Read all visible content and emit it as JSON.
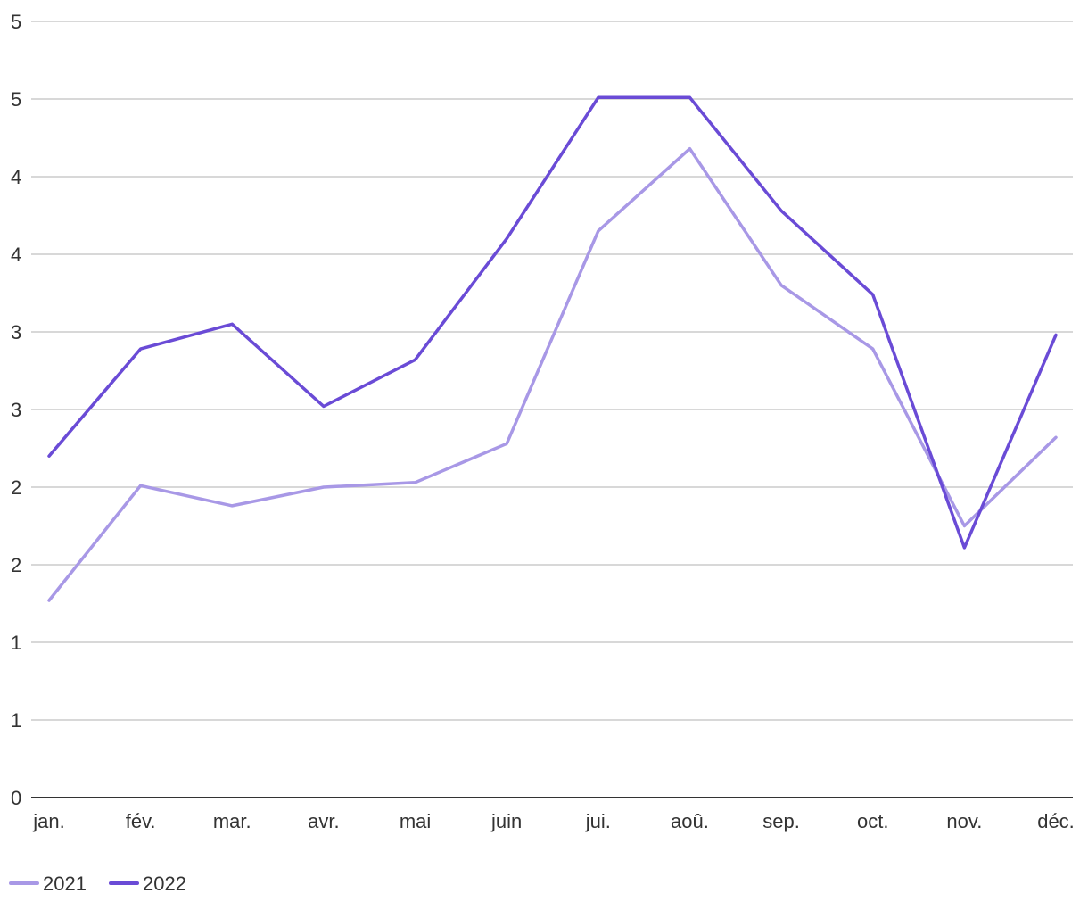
{
  "chart_data": {
    "type": "line",
    "categories": [
      "jan.",
      "fév.",
      "mar.",
      "avr.",
      "mai",
      "juin",
      "jui.",
      "aoû.",
      "sep.",
      "oct.",
      "nov.",
      "déc."
    ],
    "series": [
      {
        "name": "2021",
        "color": "#a898e6",
        "values": [
          1.27,
          2.01,
          1.88,
          2.0,
          2.03,
          2.28,
          3.65,
          4.18,
          3.3,
          2.89,
          1.75,
          2.32
        ]
      },
      {
        "name": "2022",
        "color": "#6a4bd6",
        "values": [
          2.2,
          2.89,
          3.05,
          2.52,
          2.82,
          3.6,
          4.51,
          4.51,
          3.78,
          3.24,
          1.61,
          2.98
        ]
      }
    ],
    "yticks": [
      {
        "value": 0,
        "label": "0"
      },
      {
        "value": 0.5,
        "label": "1"
      },
      {
        "value": 1,
        "label": "1"
      },
      {
        "value": 1.5,
        "label": "2"
      },
      {
        "value": 2,
        "label": "2"
      },
      {
        "value": 2.5,
        "label": "3"
      },
      {
        "value": 3,
        "label": "3"
      },
      {
        "value": 3.5,
        "label": "4"
      },
      {
        "value": 4,
        "label": "4"
      },
      {
        "value": 4.5,
        "label": "5"
      },
      {
        "value": 5,
        "label": "5"
      }
    ],
    "ylim": [
      0,
      5
    ],
    "grid": true,
    "legend_position": "bottom-left",
    "title": "",
    "xlabel": "",
    "ylabel": ""
  }
}
